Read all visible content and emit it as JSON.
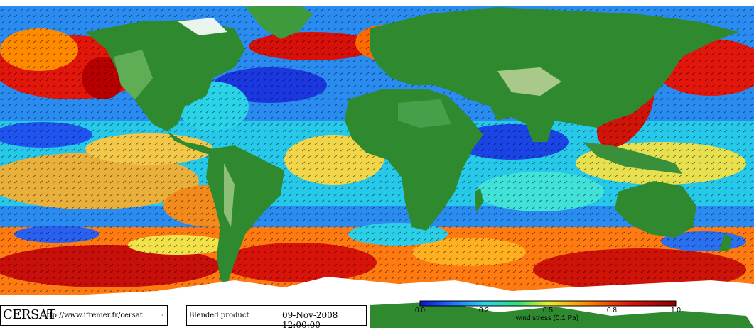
{
  "map": {
    "product": "Blended product",
    "date": "09-Nov-2008 12:00:00",
    "variable": "wind stress (0.1 Pa)"
  },
  "branding": {
    "logo_text": "CERSAT",
    "url": "http://www.ifremer.fr/cersat",
    "mark": "·"
  },
  "colorbar": {
    "title": "wind stress (0.1 Pa)",
    "ticks": [
      "0.0",
      "0.2",
      "0.5",
      "0.8",
      "1.0"
    ],
    "colors": [
      "#0a14d8",
      "#1e6cff",
      "#27d3f0",
      "#2be07a",
      "#e6ef2d",
      "#ff8a00",
      "#e0140a",
      "#8c0000"
    ]
  },
  "colors": {
    "land_low": "#2f8a2f",
    "land_high": "#7fc46a",
    "ice": "#ffffff",
    "ocean_calm": "#1030e0",
    "ocean_mid": "#20d8ea",
    "ocean_strong": "#e01a0a"
  }
}
